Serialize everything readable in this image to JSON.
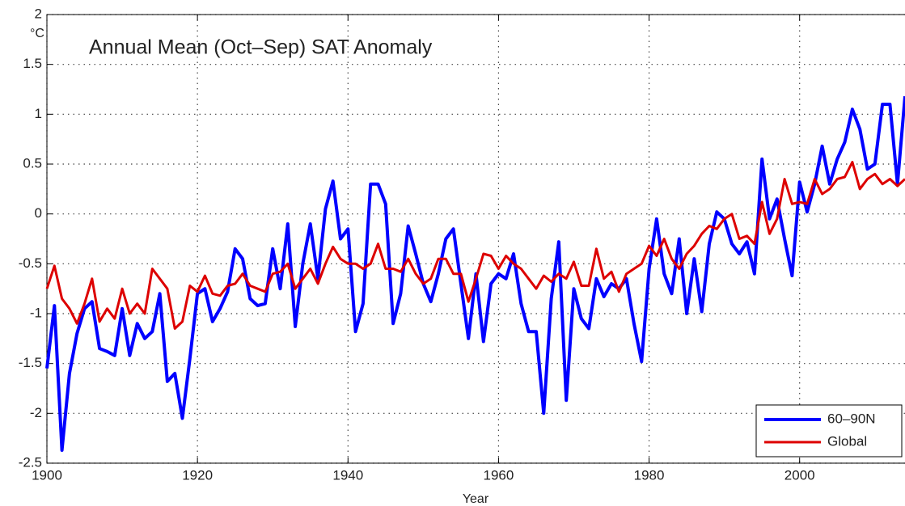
{
  "chart_data": {
    "type": "line",
    "title": "Annual Mean (Oct–Sep) SAT Anomaly",
    "x_label": "Year",
    "y_label": "°C",
    "x": [
      1900,
      1901,
      1902,
      1903,
      1904,
      1905,
      1906,
      1907,
      1908,
      1909,
      1910,
      1911,
      1912,
      1913,
      1914,
      1915,
      1916,
      1917,
      1918,
      1919,
      1920,
      1921,
      1922,
      1923,
      1924,
      1925,
      1926,
      1927,
      1928,
      1929,
      1930,
      1931,
      1932,
      1933,
      1934,
      1935,
      1936,
      1937,
      1938,
      1939,
      1940,
      1941,
      1942,
      1943,
      1944,
      1945,
      1946,
      1947,
      1948,
      1949,
      1950,
      1951,
      1952,
      1953,
      1954,
      1955,
      1956,
      1957,
      1958,
      1959,
      1960,
      1961,
      1962,
      1963,
      1964,
      1965,
      1966,
      1967,
      1968,
      1969,
      1970,
      1971,
      1972,
      1973,
      1974,
      1975,
      1976,
      1977,
      1978,
      1979,
      1980,
      1981,
      1982,
      1983,
      1984,
      1985,
      1986,
      1987,
      1988,
      1989,
      1990,
      1991,
      1992,
      1993,
      1994,
      1995,
      1996,
      1997,
      1998,
      1999,
      2000,
      2001,
      2002,
      2003,
      2004,
      2005,
      2006,
      2007,
      2008,
      2009,
      2010,
      2011,
      2012,
      2013,
      2014
    ],
    "series": [
      {
        "name": "60–90N",
        "color": "#0000ff",
        "values": [
          -1.55,
          -0.92,
          -2.37,
          -1.6,
          -1.2,
          -0.95,
          -0.88,
          -1.35,
          -1.38,
          -1.42,
          -0.95,
          -1.42,
          -1.1,
          -1.25,
          -1.18,
          -0.8,
          -1.68,
          -1.6,
          -2.05,
          -1.45,
          -0.8,
          -0.75,
          -1.08,
          -0.95,
          -0.78,
          -0.35,
          -0.45,
          -0.85,
          -0.92,
          -0.9,
          -0.35,
          -0.75,
          -0.1,
          -1.13,
          -0.5,
          -0.1,
          -0.65,
          0.05,
          0.33,
          -0.25,
          -0.15,
          -1.18,
          -0.9,
          0.3,
          0.3,
          0.1,
          -1.1,
          -0.8,
          -0.12,
          -0.4,
          -0.7,
          -0.88,
          -0.6,
          -0.25,
          -0.15,
          -0.7,
          -1.25,
          -0.6,
          -1.28,
          -0.7,
          -0.6,
          -0.65,
          -0.4,
          -0.9,
          -1.18,
          -1.18,
          -2.0,
          -0.85,
          -0.28,
          -1.87,
          -0.75,
          -1.05,
          -1.15,
          -0.65,
          -0.83,
          -0.7,
          -0.75,
          -0.65,
          -1.1,
          -1.48,
          -0.55,
          -0.05,
          -0.6,
          -0.8,
          -0.25,
          -1.0,
          -0.45,
          -0.98,
          -0.3,
          0.02,
          -0.05,
          -0.3,
          -0.4,
          -0.28,
          -0.6,
          0.55,
          -0.05,
          0.15,
          -0.25,
          -0.62,
          0.32,
          0.02,
          0.3,
          0.68,
          0.3,
          0.55,
          0.72,
          1.05,
          0.85,
          0.45,
          0.5,
          1.1,
          1.1,
          0.3,
          1.18
        ]
      },
      {
        "name": "Global",
        "color": "#dd0000",
        "values": [
          -0.75,
          -0.52,
          -0.85,
          -0.95,
          -1.1,
          -0.9,
          -0.65,
          -1.08,
          -0.95,
          -1.05,
          -0.75,
          -1.0,
          -0.9,
          -1.0,
          -0.55,
          -0.65,
          -0.75,
          -1.15,
          -1.08,
          -0.72,
          -0.78,
          -0.62,
          -0.8,
          -0.82,
          -0.72,
          -0.7,
          -0.6,
          -0.72,
          -0.75,
          -0.78,
          -0.6,
          -0.58,
          -0.5,
          -0.75,
          -0.65,
          -0.55,
          -0.7,
          -0.5,
          -0.33,
          -0.45,
          -0.5,
          -0.5,
          -0.55,
          -0.5,
          -0.3,
          -0.55,
          -0.55,
          -0.58,
          -0.45,
          -0.6,
          -0.7,
          -0.65,
          -0.45,
          -0.45,
          -0.6,
          -0.6,
          -0.88,
          -0.65,
          -0.4,
          -0.42,
          -0.55,
          -0.42,
          -0.5,
          -0.55,
          -0.65,
          -0.75,
          -0.62,
          -0.68,
          -0.6,
          -0.65,
          -0.48,
          -0.72,
          -0.72,
          -0.35,
          -0.65,
          -0.58,
          -0.78,
          -0.6,
          -0.55,
          -0.5,
          -0.32,
          -0.42,
          -0.25,
          -0.45,
          -0.55,
          -0.4,
          -0.32,
          -0.2,
          -0.12,
          -0.15,
          -0.05,
          0,
          -0.25,
          -0.22,
          -0.3,
          0.12,
          -0.2,
          -0.05,
          0.35,
          0.1,
          0.12,
          0.1,
          0.35,
          0.2,
          0.25,
          0.35,
          0.37,
          0.52,
          0.25,
          0.35,
          0.4,
          0.3,
          0.35,
          0.28,
          0.35
        ]
      }
    ],
    "xlim": [
      1900,
      2014
    ],
    "xticks": [
      1900,
      1920,
      1940,
      1960,
      1980,
      2000
    ],
    "ylim": [
      -2.5,
      2
    ],
    "yticks": [
      -2.5,
      -2,
      -1.5,
      -1,
      -0.5,
      0,
      0.5,
      1,
      1.5,
      2
    ],
    "grid": true,
    "legend": "lower right"
  }
}
